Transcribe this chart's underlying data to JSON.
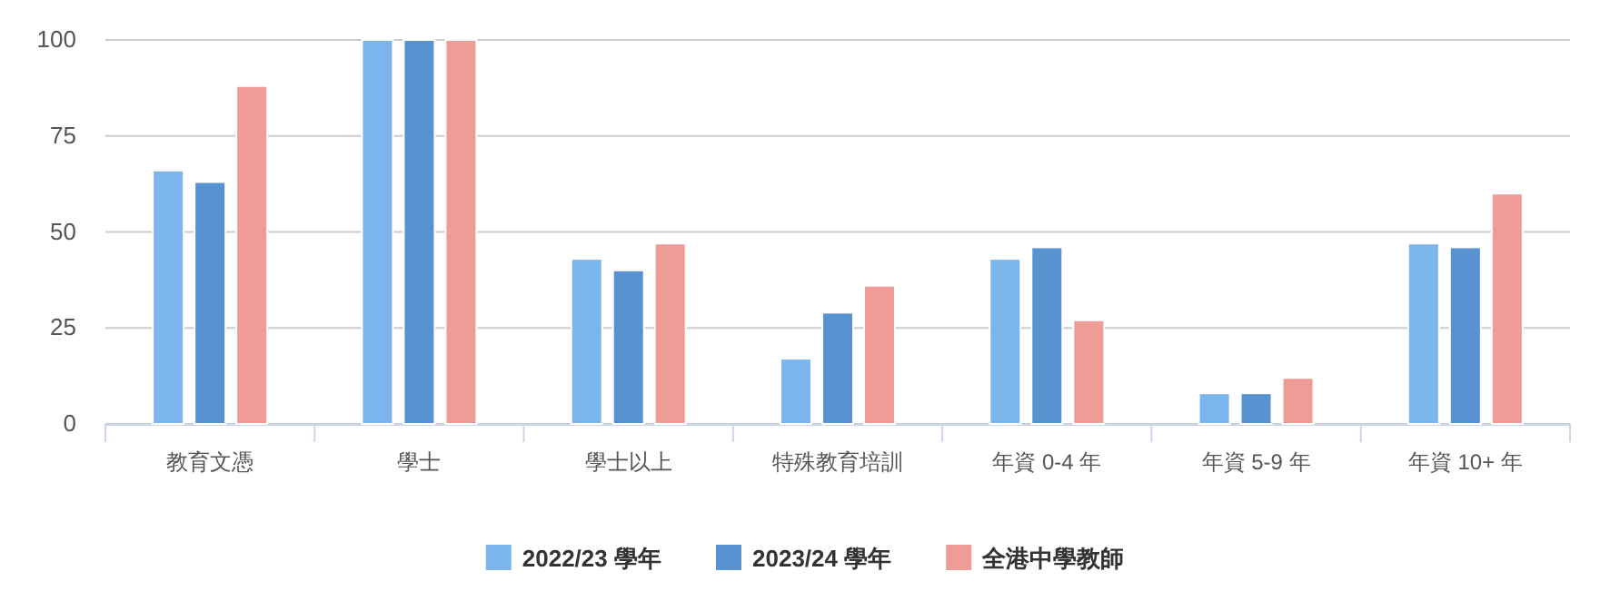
{
  "chart_data": {
    "type": "bar",
    "categories": [
      "教育文憑",
      "學士",
      "學士以上",
      "特殊教育培訓",
      "年資 0-4 年",
      "年資 5-9 年",
      "年資 10+ 年"
    ],
    "series": [
      {
        "name": "2022/23 學年",
        "color": "#7cb5ec",
        "values": [
          66,
          100,
          43,
          17,
          43,
          8,
          47
        ]
      },
      {
        "name": "2023/24 學年",
        "color": "#5892d0",
        "values": [
          63,
          100,
          40,
          29,
          46,
          8,
          46
        ]
      },
      {
        "name": "全港中學教師",
        "color": "#f09c96",
        "values": [
          88,
          100,
          47,
          36,
          27,
          12,
          60
        ]
      }
    ],
    "ylim": [
      0,
      100
    ],
    "yticks": [
      0,
      25,
      50,
      75,
      100
    ],
    "grid": "y",
    "legend": "bottom"
  }
}
